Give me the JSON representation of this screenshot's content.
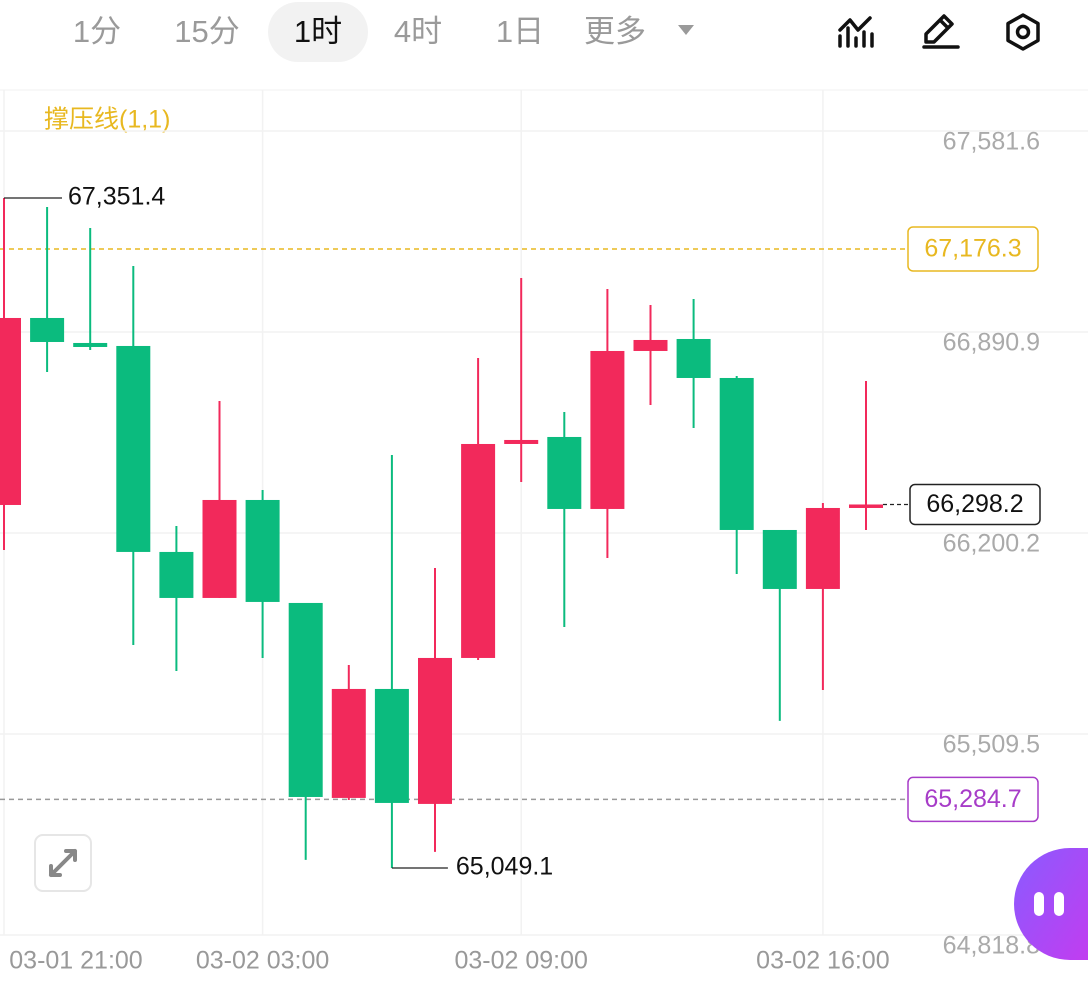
{
  "toolbar": {
    "tabs": [
      "1分",
      "15分",
      "1时",
      "4时",
      "1日",
      "更多"
    ],
    "active_tab": 2
  },
  "chart_data": {
    "type": "candlestick",
    "indicator": "撑压线(1,1)",
    "categories": [
      "03-01 21:00",
      null,
      null,
      null,
      null,
      null,
      "03-02 03:00",
      null,
      null,
      null,
      null,
      null,
      "03-02 09:00",
      null,
      null,
      null,
      null,
      null,
      null,
      "03-02 16:00",
      null
    ],
    "open": [
      66296.5,
      66939.1,
      66853.2,
      66842.9,
      66135.1,
      65977.0,
      66313.7,
      65959.8,
      65289.8,
      65664.3,
      65269.2,
      65770.8,
      66506.1,
      66530.2,
      66282.8,
      66825.7,
      66866.9,
      66732.9,
      66210.6,
      66007.9,
      66286.2
    ],
    "high": [
      67351.4,
      67320.5,
      67248.3,
      67117.8,
      66224.4,
      66653.9,
      66348.1,
      65959.8,
      65746.8,
      66468.4,
      66080.1,
      66801.6,
      67076.5,
      66616.1,
      67038.7,
      66983.7,
      67004.4,
      66739.8,
      66210.6,
      66303.4,
      66722.6
    ],
    "low": [
      66141.9,
      66753.5,
      66829.1,
      65815.5,
      65726.2,
      65977.0,
      65770.8,
      65076.8,
      65282.9,
      65049.1,
      65104.3,
      65764.0,
      66375.6,
      65877.3,
      66114.4,
      66640.1,
      66561.1,
      66059.5,
      65554.4,
      65660.9,
      66210.6
    ],
    "close": [
      66939.1,
      66856.6,
      66839.4,
      66135.1,
      65977.0,
      66313.7,
      65963.3,
      65293.1,
      65664.3,
      65272.6,
      65770.8,
      66506.1,
      66519.9,
      66282.8,
      66825.7,
      66863.5,
      66732.9,
      66210.6,
      66007.9,
      66286.2,
      66298.2
    ],
    "colors": {
      "up": "#f2295b",
      "down": "#0bbb7e"
    },
    "ylim": [
      64818.8,
      67722.5
    ],
    "yticks": [
      {
        "value": 64818.8,
        "label": "64,818.8"
      },
      {
        "value": 65509.5,
        "label": "65,509.5"
      },
      {
        "value": 66200.2,
        "label": "66,200.2"
      },
      {
        "value": 66890.9,
        "label": "66,890.9"
      },
      {
        "value": 67581.6,
        "label": "67,581.6"
      }
    ],
    "grid": true,
    "high_label": {
      "value": 67351.4,
      "label": "67,351.4"
    },
    "low_label": {
      "value": 65049.1,
      "label": "65,049.1"
    },
    "support_line": {
      "value": 67176.3,
      "label": "67,176.3",
      "color": "#e8b820"
    },
    "resistance_line": {
      "value": 65284.7,
      "label": "65,284.7",
      "color": "#a73cc8"
    },
    "last_price": {
      "value": 66298.2,
      "label": "66,298.2"
    }
  }
}
